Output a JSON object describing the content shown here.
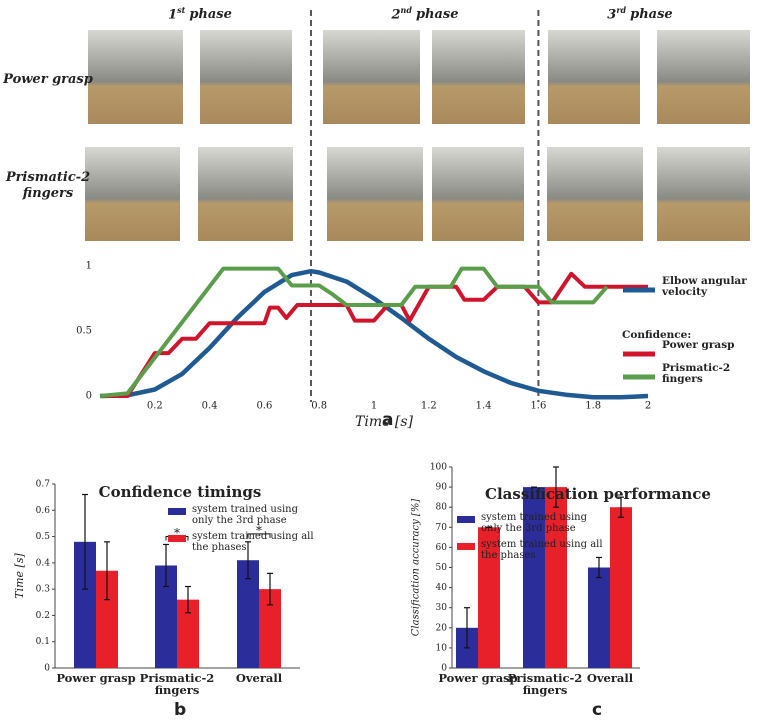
{
  "figure": {
    "phases": [
      {
        "number": "1",
        "suffix": "st",
        "word": "phase"
      },
      {
        "number": "2",
        "suffix": "nd",
        "word": "phase"
      },
      {
        "number": "3",
        "suffix": "rd",
        "word": "phase"
      }
    ],
    "rows": [
      "Power grasp",
      "Prismatic-2 fingers"
    ]
  },
  "chart_data": [
    {
      "type": "line",
      "panel": "a",
      "xlabel": "Time [s]",
      "xlim": [
        0,
        2
      ],
      "xticks": [
        0.2,
        0.4,
        0.6,
        0.8,
        1,
        1.2,
        1.4,
        1.6,
        1.8,
        2
      ],
      "ylim": [
        0,
        1
      ],
      "yticks": [
        0,
        0.5,
        1
      ],
      "phase_boundaries": [
        0.77,
        1.6
      ],
      "legend_heading": "Confidence:",
      "series": [
        {
          "name": "Elbow angular velocity",
          "color": "#1f5a93",
          "x": [
            0,
            0.1,
            0.2,
            0.3,
            0.4,
            0.5,
            0.6,
            0.7,
            0.77,
            0.8,
            0.9,
            1.0,
            1.1,
            1.2,
            1.3,
            1.4,
            1.5,
            1.6,
            1.7,
            1.8,
            1.9,
            2.0
          ],
          "values": [
            0,
            0.005,
            0.05,
            0.17,
            0.37,
            0.6,
            0.8,
            0.93,
            0.96,
            0.95,
            0.88,
            0.75,
            0.6,
            0.44,
            0.3,
            0.19,
            0.1,
            0.04,
            0.01,
            -0.01,
            -0.01,
            0
          ]
        },
        {
          "name": "Power grasp",
          "color": "#d0142c",
          "x": [
            0,
            0.1,
            0.2,
            0.25,
            0.3,
            0.35,
            0.4,
            0.6,
            0.62,
            0.65,
            0.68,
            0.72,
            0.9,
            0.93,
            1.0,
            1.05,
            1.1,
            1.13,
            1.2,
            1.3,
            1.33,
            1.4,
            1.45,
            1.55,
            1.6,
            1.65,
            1.72,
            1.77,
            2.0
          ],
          "values": [
            0,
            0,
            0.33,
            0.33,
            0.44,
            0.44,
            0.56,
            0.56,
            0.68,
            0.68,
            0.6,
            0.7,
            0.7,
            0.58,
            0.58,
            0.7,
            0.7,
            0.58,
            0.84,
            0.84,
            0.74,
            0.74,
            0.84,
            0.84,
            0.72,
            0.72,
            0.94,
            0.84,
            0.84
          ]
        },
        {
          "name": "Prismatic-2 fingers",
          "color": "#5a9e4b",
          "x": [
            0,
            0.1,
            0.45,
            0.65,
            0.7,
            0.8,
            0.85,
            0.9,
            1.1,
            1.15,
            1.28,
            1.32,
            1.4,
            1.45,
            1.6,
            1.65,
            1.8,
            1.85
          ],
          "values": [
            0,
            0.02,
            0.98,
            0.98,
            0.85,
            0.85,
            0.78,
            0.7,
            0.7,
            0.84,
            0.84,
            0.98,
            0.98,
            0.84,
            0.84,
            0.72,
            0.72,
            0.84
          ]
        }
      ]
    },
    {
      "type": "bar",
      "panel": "b",
      "title": "Confidence timings",
      "ylabel": "Time [s]",
      "categories": [
        "Power grasp",
        "Prismatic-2 fingers",
        "Overall"
      ],
      "ylim": [
        0,
        0.7
      ],
      "yticks": [
        0,
        0.1,
        0.2,
        0.3,
        0.4,
        0.5,
        0.6,
        0.7
      ],
      "significance_labels": [
        null,
        "*",
        "*"
      ],
      "series": [
        {
          "name": "system trained using only the 3rd phase",
          "color": "#2b2d9a",
          "values": [
            0.48,
            0.39,
            0.41
          ],
          "errors": [
            0.18,
            0.08,
            0.07
          ]
        },
        {
          "name": "system trained using all the phases",
          "color": "#e8202a",
          "values": [
            0.37,
            0.26,
            0.3
          ],
          "errors": [
            0.11,
            0.05,
            0.06
          ]
        }
      ]
    },
    {
      "type": "bar",
      "panel": "c",
      "title": "Classification performance",
      "ylabel": "Classification accuracy [%]",
      "categories": [
        "Power grasp",
        "Prismatic-2 fingers",
        "Overall"
      ],
      "ylim": [
        0,
        100
      ],
      "yticks": [
        0,
        10,
        20,
        30,
        40,
        50,
        60,
        70,
        80,
        90,
        100
      ],
      "series": [
        {
          "name": "system trained using only the 3rd phase",
          "color": "#2b2d9a",
          "values": [
            20,
            90,
            50
          ],
          "errors": [
            10,
            0,
            5
          ]
        },
        {
          "name": "system trained using all the phases",
          "color": "#e8202a",
          "values": [
            70,
            90,
            80
          ],
          "errors": [
            0,
            10,
            5
          ]
        }
      ]
    }
  ]
}
